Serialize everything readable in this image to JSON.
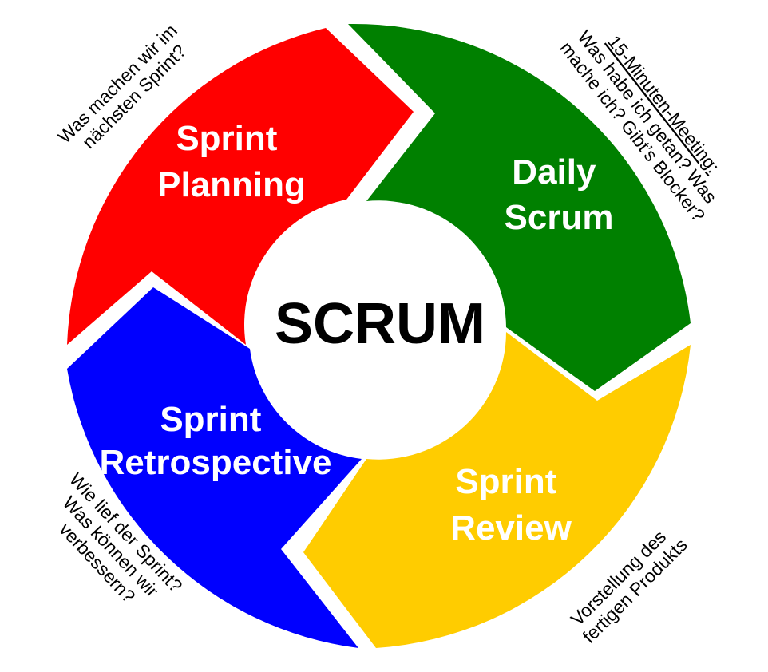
{
  "center": {
    "title": "SCRUM"
  },
  "segments": [
    {
      "id": "planning",
      "color": "#ff0000",
      "line1": "Sprint",
      "line2": "Planning"
    },
    {
      "id": "daily",
      "color": "#008000",
      "line1": "Daily",
      "line2": "Scrum"
    },
    {
      "id": "review",
      "color": "#ffcc00",
      "line1": "Sprint",
      "line2": "Review"
    },
    {
      "id": "retro",
      "color": "#0000ff",
      "line1": "Sprint",
      "line2": "Retrospective"
    }
  ],
  "notes": {
    "planning": {
      "line1": "Was machen wir im",
      "line2": "nächsten Sprint?"
    },
    "daily": {
      "heading": "15-Minuten-Meeting:",
      "line1": "Was habe ich getan? Was",
      "line2": "mache ich? Gibt’s Blocker?"
    },
    "review": {
      "line1": "Vorstellung des",
      "line2": "fertigen Produkts"
    },
    "retro": {
      "line1": "Wie lief der Sprint?",
      "line2": "Was können wir",
      "line3": "verbessern?"
    }
  }
}
